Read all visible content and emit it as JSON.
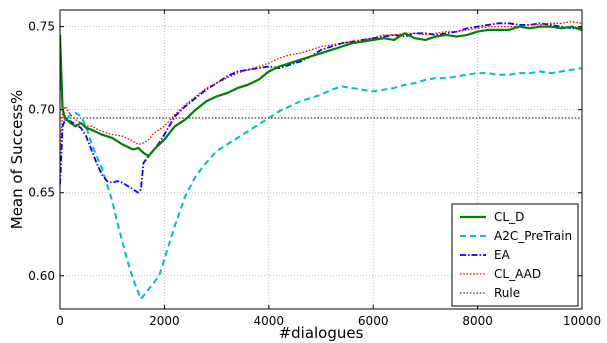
{
  "chart_data": {
    "type": "line",
    "title": "",
    "xlabel": "#dialogues",
    "ylabel": "Mean of Success%",
    "xlim": [
      0,
      10000
    ],
    "ylim": [
      0.58,
      0.76
    ],
    "x_ticks": [
      "0",
      "2000",
      "4000",
      "6000",
      "8000",
      "10000"
    ],
    "y_ticks": [
      "0.60",
      "0.65",
      "0.70",
      "0.75"
    ],
    "grid": true,
    "legend_position": "lower-right",
    "series": [
      {
        "name": "CL_D",
        "color": "#008000",
        "style": "solid",
        "x": [
          0,
          50,
          100,
          200,
          300,
          400,
          500,
          600,
          800,
          1000,
          1200,
          1400,
          1500,
          1600,
          1700,
          1800,
          2000,
          2200,
          2400,
          2600,
          2800,
          3000,
          3200,
          3400,
          3600,
          3800,
          4000,
          4200,
          4400,
          4600,
          4800,
          5000,
          5200,
          5400,
          5600,
          5800,
          6000,
          6200,
          6400,
          6600,
          6800,
          7000,
          7200,
          7400,
          7600,
          7800,
          8000,
          8200,
          8400,
          8600,
          8800,
          9000,
          9200,
          9400,
          9600,
          9800,
          10000
        ],
        "y": [
          0.745,
          0.7,
          0.695,
          0.692,
          0.69,
          0.692,
          0.689,
          0.688,
          0.685,
          0.683,
          0.679,
          0.676,
          0.677,
          0.674,
          0.672,
          0.676,
          0.682,
          0.69,
          0.694,
          0.7,
          0.705,
          0.708,
          0.71,
          0.713,
          0.715,
          0.718,
          0.723,
          0.726,
          0.728,
          0.73,
          0.732,
          0.734,
          0.736,
          0.738,
          0.74,
          0.741,
          0.742,
          0.743,
          0.742,
          0.746,
          0.743,
          0.742,
          0.744,
          0.745,
          0.744,
          0.745,
          0.747,
          0.748,
          0.748,
          0.748,
          0.75,
          0.749,
          0.75,
          0.75,
          0.749,
          0.75,
          0.748
        ]
      },
      {
        "name": "A2C_PreTrain",
        "color": "#00bfbf",
        "style": "dashed",
        "x": [
          0,
          50,
          100,
          200,
          300,
          400,
          500,
          600,
          700,
          800,
          900,
          1000,
          1100,
          1200,
          1300,
          1400,
          1500,
          1550,
          1600,
          1700,
          1800,
          1900,
          2000,
          2200,
          2400,
          2600,
          2800,
          3000,
          3200,
          3400,
          3600,
          3800,
          4000,
          4200,
          4400,
          4600,
          4800,
          5000,
          5200,
          5400,
          5600,
          5800,
          6000,
          6200,
          6400,
          6600,
          6800,
          7000,
          7200,
          7400,
          7600,
          7800,
          8000,
          8200,
          8400,
          8600,
          8800,
          9000,
          9200,
          9400,
          9600,
          9800,
          10000
        ],
        "y": [
          0.727,
          0.7,
          0.693,
          0.697,
          0.698,
          0.696,
          0.69,
          0.68,
          0.672,
          0.665,
          0.655,
          0.645,
          0.632,
          0.62,
          0.608,
          0.598,
          0.59,
          0.586,
          0.588,
          0.592,
          0.596,
          0.6,
          0.61,
          0.63,
          0.648,
          0.66,
          0.668,
          0.675,
          0.679,
          0.683,
          0.687,
          0.691,
          0.695,
          0.699,
          0.702,
          0.705,
          0.707,
          0.709,
          0.712,
          0.714,
          0.713,
          0.712,
          0.711,
          0.712,
          0.713,
          0.715,
          0.716,
          0.718,
          0.719,
          0.719,
          0.72,
          0.721,
          0.722,
          0.722,
          0.721,
          0.721,
          0.722,
          0.722,
          0.723,
          0.722,
          0.723,
          0.724,
          0.725
        ]
      },
      {
        "name": "EA",
        "color": "#0000ff",
        "style": "dashdot",
        "x": [
          0,
          50,
          100,
          200,
          300,
          400,
          500,
          600,
          700,
          800,
          900,
          1000,
          1100,
          1200,
          1300,
          1400,
          1500,
          1550,
          1600,
          1700,
          1800,
          1900,
          2000,
          2200,
          2400,
          2600,
          2800,
          3000,
          3200,
          3400,
          3600,
          3800,
          4000,
          4200,
          4400,
          4600,
          4800,
          5000,
          5200,
          5400,
          5600,
          5800,
          6000,
          6200,
          6400,
          6600,
          6800,
          7000,
          7200,
          7400,
          7600,
          7800,
          8000,
          8200,
          8400,
          8600,
          8800,
          9000,
          9200,
          9400,
          9600,
          9800,
          10000
        ],
        "y": [
          0.655,
          0.69,
          0.694,
          0.693,
          0.691,
          0.689,
          0.684,
          0.676,
          0.668,
          0.661,
          0.657,
          0.656,
          0.657,
          0.656,
          0.654,
          0.652,
          0.65,
          0.652,
          0.668,
          0.672,
          0.676,
          0.68,
          0.685,
          0.696,
          0.702,
          0.707,
          0.712,
          0.716,
          0.72,
          0.723,
          0.724,
          0.725,
          0.726,
          0.725,
          0.727,
          0.729,
          0.732,
          0.736,
          0.738,
          0.74,
          0.741,
          0.742,
          0.743,
          0.744,
          0.745,
          0.744,
          0.746,
          0.746,
          0.745,
          0.746,
          0.747,
          0.749,
          0.75,
          0.751,
          0.752,
          0.752,
          0.751,
          0.751,
          0.752,
          0.751,
          0.75,
          0.749,
          0.749
        ]
      },
      {
        "name": "CL_AAD",
        "color": "#ff0000",
        "style": "dotted",
        "x": [
          0,
          50,
          100,
          200,
          300,
          400,
          500,
          600,
          800,
          1000,
          1200,
          1400,
          1500,
          1600,
          1700,
          1800,
          2000,
          2200,
          2400,
          2600,
          2800,
          3000,
          3200,
          3400,
          3600,
          3800,
          4000,
          4200,
          4400,
          4600,
          4800,
          5000,
          5200,
          5400,
          5600,
          5800,
          6000,
          6200,
          6400,
          6600,
          6800,
          7000,
          7200,
          7400,
          7600,
          7800,
          8000,
          8200,
          8400,
          8600,
          8800,
          9000,
          9200,
          9400,
          9600,
          9800,
          10000
        ],
        "y": [
          0.675,
          0.698,
          0.702,
          0.697,
          0.694,
          0.692,
          0.69,
          0.69,
          0.687,
          0.685,
          0.684,
          0.681,
          0.679,
          0.68,
          0.682,
          0.686,
          0.69,
          0.697,
          0.703,
          0.708,
          0.713,
          0.716,
          0.719,
          0.722,
          0.724,
          0.726,
          0.728,
          0.731,
          0.733,
          0.734,
          0.736,
          0.738,
          0.739,
          0.74,
          0.741,
          0.742,
          0.743,
          0.745,
          0.745,
          0.746,
          0.746,
          0.745,
          0.746,
          0.747,
          0.747,
          0.748,
          0.749,
          0.75,
          0.75,
          0.75,
          0.75,
          0.751,
          0.751,
          0.752,
          0.752,
          0.753,
          0.752
        ]
      },
      {
        "name": "Rule",
        "color": "#333333",
        "style": "dotted",
        "x": [
          0,
          10000
        ],
        "y": [
          0.695,
          0.695
        ]
      }
    ]
  }
}
